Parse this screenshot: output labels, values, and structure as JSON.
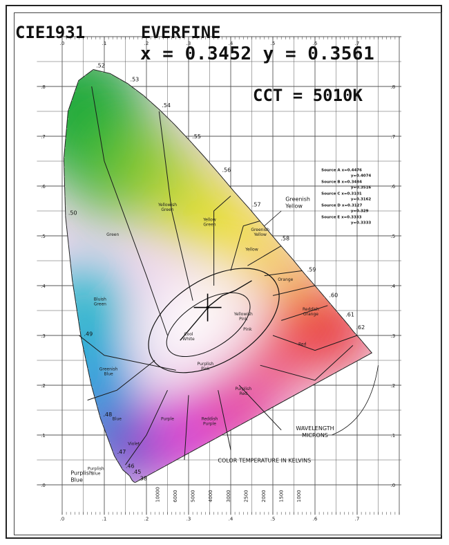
{
  "header": {
    "title": "CIE1931",
    "brand": "EVERFINE",
    "xy_readout": "x = 0.3452 y = 0.3561",
    "cct_readout": "CCT = 5010K"
  },
  "chart_data": {
    "type": "scatter",
    "title": "CIE1931",
    "xlim": [
      0,
      0.8
    ],
    "ylim": [
      0,
      0.9
    ],
    "x_ticks": [
      ".0",
      ".1",
      ".2",
      ".3",
      ".4",
      ".5",
      ".6",
      ".7"
    ],
    "y_ticks": [
      ".0",
      ".1",
      ".2",
      ".3",
      ".4",
      ".5",
      ".6",
      ".7",
      ".8"
    ],
    "grid": true,
    "measured_point": {
      "x": 0.3452,
      "y": 0.3561,
      "cct_k": 5010
    },
    "locus_labels": [
      {
        "label": ".52",
        "x": 0.074,
        "y": 0.834
      },
      {
        "label": ".53",
        "x": 0.155,
        "y": 0.806
      },
      {
        "label": ".54",
        "x": 0.23,
        "y": 0.754
      },
      {
        "label": ".55",
        "x": 0.302,
        "y": 0.692
      },
      {
        "label": ".56",
        "x": 0.373,
        "y": 0.624
      },
      {
        "label": ".57",
        "x": 0.444,
        "y": 0.555
      },
      {
        "label": ".58",
        "x": 0.512,
        "y": 0.487
      },
      {
        "label": ".59",
        "x": 0.575,
        "y": 0.424
      },
      {
        "label": ".60",
        "x": 0.627,
        "y": 0.373
      },
      {
        "label": ".61",
        "x": 0.666,
        "y": 0.334
      },
      {
        "label": ".62",
        "x": 0.691,
        "y": 0.308
      },
      {
        "label": ".50",
        "x": 0.008,
        "y": 0.538
      },
      {
        "label": ".49",
        "x": 0.045,
        "y": 0.295
      },
      {
        "label": ".48",
        "x": 0.091,
        "y": 0.133
      },
      {
        "label": ".47",
        "x": 0.124,
        "y": 0.058
      },
      {
        "label": ".46",
        "x": 0.144,
        "y": 0.03
      },
      {
        "label": ".45",
        "x": 0.16,
        "y": 0.018
      },
      {
        "label": ".38",
        "x": 0.174,
        "y": 0.005
      }
    ],
    "region_labels": [
      "Green",
      "Yellowish Green",
      "Yellow Green",
      "Greenish Yellow",
      "Yellow",
      "Orange",
      "Reddish Orange",
      "Red",
      "Pink",
      "Yellowish Pink",
      "Purplish Pink",
      "Purplish Red",
      "Reddish Purple",
      "Purple",
      "Violet",
      "Blue",
      "Greenish Blue",
      "Bluish Green",
      "Purplish Blue",
      "Cool White"
    ],
    "annotations": [
      "Greenish Yellow",
      "Purplish Blue",
      "WAVELENGTH MICRONS",
      "COLOR TEMPERATURE IN KELVINS"
    ],
    "sources": [
      {
        "name": "Source A",
        "x": 0.4476,
        "y": 0.4074
      },
      {
        "name": "Source B",
        "x": 0.3484,
        "y": 0.3516
      },
      {
        "name": "Source C",
        "x": 0.3101,
        "y": 0.3162
      },
      {
        "name": "Source D",
        "x": 0.3127,
        "y": 0.329
      },
      {
        "name": "Source E",
        "x": 0.3333,
        "y": 0.3333
      }
    ],
    "cct_scale_labels": [
      "10000",
      "6000",
      "5000",
      "4000",
      "3000",
      "2500",
      "2000",
      "1500",
      "1000"
    ]
  },
  "colors": {
    "frame": "#222222",
    "grid": "#555555",
    "region_lines": "#1a1a1a",
    "crosshair": "#000000"
  }
}
